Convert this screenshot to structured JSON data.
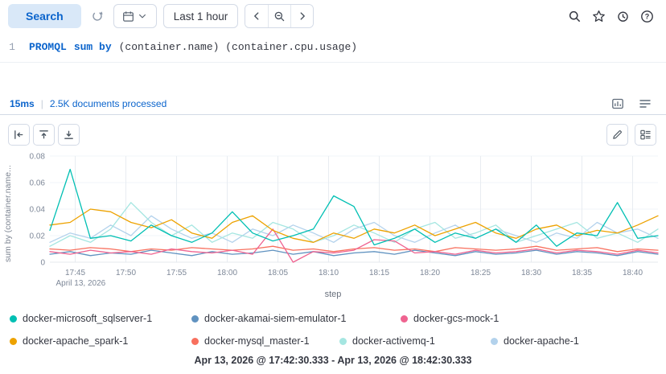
{
  "accent_color": "#0b64cc",
  "topbar": {
    "search_label": "Search",
    "time_range_label": "Last 1 hour"
  },
  "query_editor": {
    "line_number": "1",
    "tokens": {
      "keyword": "PROMQL",
      "function": "sum by",
      "arguments": "(container.name) (container.cpu.usage)"
    }
  },
  "status_bar": {
    "latency": "15ms",
    "separator": "|",
    "documents_processed": "2.5K documents processed"
  },
  "icons": {
    "help_glyph": "?"
  },
  "chart_data": {
    "type": "line",
    "title": "",
    "xlabel": "step",
    "ylabel": "sum by (container.name...",
    "ylim": [
      0,
      0.08
    ],
    "y_ticks": [
      0,
      0.02,
      0.04,
      0.06,
      0.08
    ],
    "y_tick_labels": [
      "0",
      "0.02",
      "0.04",
      "0.06",
      "0.08"
    ],
    "x_range_minutes": [
      0,
      60
    ],
    "x_minutes": [
      0,
      2,
      4,
      6,
      8,
      10,
      12,
      14,
      16,
      18,
      20,
      22,
      24,
      26,
      28,
      30,
      32,
      34,
      36,
      38,
      40,
      42,
      44,
      46,
      48,
      50,
      52,
      54,
      56,
      58,
      60
    ],
    "x_tick_minutes": [
      2.5,
      7.5,
      12.5,
      17.5,
      22.5,
      27.5,
      32.5,
      37.5,
      42.5,
      47.5,
      52.5,
      57.5
    ],
    "x_tick_labels": [
      "17:45",
      "17:50",
      "17:55",
      "18:00",
      "18:05",
      "18:10",
      "18:15",
      "18:20",
      "18:25",
      "18:30",
      "18:35",
      "18:40"
    ],
    "x_start_date_label": "April 13, 2026",
    "grid": "vertical",
    "legend_position": "bottom",
    "draw_order": [
      6,
      5,
      1,
      4,
      2,
      3,
      0
    ],
    "series": [
      {
        "name": "docker-microsoft_sqlserver-1",
        "color": "#00bfb3",
        "values": [
          0.024,
          0.07,
          0.018,
          0.02,
          0.016,
          0.028,
          0.02,
          0.015,
          0.022,
          0.038,
          0.022,
          0.016,
          0.02,
          0.025,
          0.05,
          0.042,
          0.013,
          0.018,
          0.025,
          0.015,
          0.022,
          0.018,
          0.025,
          0.015,
          0.028,
          0.012,
          0.022,
          0.02,
          0.045,
          0.018,
          0.02
        ]
      },
      {
        "name": "docker-akamai-siem-emulator-1",
        "color": "#6092c0",
        "values": [
          0.006,
          0.008,
          0.005,
          0.007,
          0.006,
          0.009,
          0.007,
          0.005,
          0.008,
          0.006,
          0.007,
          0.009,
          0.006,
          0.008,
          0.005,
          0.007,
          0.008,
          0.006,
          0.009,
          0.007,
          0.005,
          0.008,
          0.006,
          0.007,
          0.009,
          0.006,
          0.008,
          0.007,
          0.005,
          0.008,
          0.006
        ]
      },
      {
        "name": "docker-gcs-mock-1",
        "color": "#ef6390",
        "values": [
          0.008,
          0.006,
          0.009,
          0.007,
          0.008,
          0.006,
          0.01,
          0.008,
          0.007,
          0.009,
          0.006,
          0.025,
          0.0,
          0.008,
          0.007,
          0.009,
          0.017,
          0.016,
          0.007,
          0.008,
          0.006,
          0.009,
          0.007,
          0.008,
          0.01,
          0.007,
          0.009,
          0.008,
          0.006,
          0.009,
          0.007
        ]
      },
      {
        "name": "docker-apache_spark-1",
        "color": "#eda200",
        "values": [
          0.028,
          0.03,
          0.04,
          0.038,
          0.03,
          0.026,
          0.032,
          0.022,
          0.018,
          0.03,
          0.035,
          0.024,
          0.018,
          0.015,
          0.022,
          0.018,
          0.025,
          0.022,
          0.028,
          0.02,
          0.025,
          0.03,
          0.022,
          0.018,
          0.025,
          0.028,
          0.02,
          0.024,
          0.022,
          0.028,
          0.035
        ]
      },
      {
        "name": "docker-mysql_master-1",
        "color": "#f8705e",
        "values": [
          0.01,
          0.009,
          0.011,
          0.01,
          0.008,
          0.01,
          0.009,
          0.011,
          0.01,
          0.009,
          0.01,
          0.012,
          0.009,
          0.01,
          0.008,
          0.01,
          0.011,
          0.009,
          0.01,
          0.008,
          0.011,
          0.01,
          0.009,
          0.01,
          0.012,
          0.009,
          0.01,
          0.011,
          0.008,
          0.01,
          0.009
        ]
      },
      {
        "name": "docker-activemq-1",
        "color": "#a5e6e1",
        "values": [
          0.012,
          0.02,
          0.015,
          0.025,
          0.045,
          0.03,
          0.02,
          0.028,
          0.015,
          0.022,
          0.018,
          0.03,
          0.025,
          0.015,
          0.02,
          0.028,
          0.022,
          0.015,
          0.025,
          0.03,
          0.018,
          0.022,
          0.028,
          0.015,
          0.02,
          0.025,
          0.03,
          0.018,
          0.022,
          0.015,
          0.025
        ]
      },
      {
        "name": "docker-apache-1",
        "color": "#b3d2ec",
        "values": [
          0.015,
          0.022,
          0.018,
          0.028,
          0.02,
          0.035,
          0.025,
          0.018,
          0.022,
          0.015,
          0.025,
          0.02,
          0.028,
          0.022,
          0.015,
          0.025,
          0.03,
          0.02,
          0.015,
          0.022,
          0.028,
          0.018,
          0.025,
          0.02,
          0.015,
          0.022,
          0.018,
          0.03,
          0.022,
          0.025,
          0.018
        ]
      }
    ]
  },
  "legend": {
    "rows": [
      [
        0,
        1,
        2
      ],
      [
        3,
        4,
        5,
        6
      ]
    ]
  },
  "footer": {
    "time_range": "Apr 13, 2026 @ 17:42:30.333 - Apr 13, 2026 @ 18:42:30.333"
  }
}
